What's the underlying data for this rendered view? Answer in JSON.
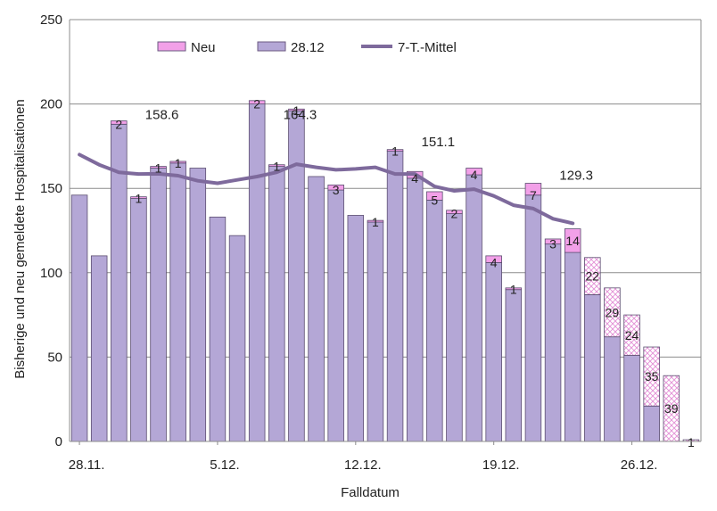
{
  "chart_data": {
    "type": "bar",
    "ylabel": "Bisherige und neu gemeldete Hospitalisationen",
    "xlabel": "Falldatum",
    "ylim": [
      0,
      250
    ],
    "yticks": [
      0,
      50,
      100,
      150,
      200,
      250
    ],
    "xtick_labels": [
      {
        "label": "28.11.",
        "index": 0
      },
      {
        "label": "5.12.",
        "index": 7
      },
      {
        "label": "12.12.",
        "index": 14
      },
      {
        "label": "19.12.",
        "index": 21
      },
      {
        "label": "26.12.",
        "index": 28
      }
    ],
    "legend": {
      "position": "top",
      "entries": [
        {
          "name": "Neu",
          "kind": "bar-new"
        },
        {
          "name": "28.12",
          "kind": "bar-old"
        },
        {
          "name": "7-T.-Mittel",
          "kind": "line"
        }
      ]
    },
    "series": [
      {
        "name": "28.12",
        "values": [
          146,
          110,
          188,
          144,
          162,
          165,
          162,
          133,
          122,
          200,
          163,
          196,
          157,
          149,
          134,
          130,
          172,
          156,
          143,
          135,
          158,
          106,
          90,
          146,
          117,
          112,
          87,
          62,
          51,
          21,
          0,
          0
        ]
      },
      {
        "name": "Neu",
        "values": [
          0,
          0,
          2,
          1,
          1,
          1,
          0,
          0,
          0,
          2,
          1,
          1,
          0,
          3,
          0,
          1,
          1,
          4,
          5,
          2,
          4,
          4,
          1,
          7,
          3,
          14,
          22,
          29,
          24,
          35,
          39,
          1
        ]
      },
      {
        "name": "7-T.-Mittel",
        "values": [
          170,
          164,
          159.5,
          158.5,
          158.6,
          157.5,
          154.5,
          153,
          155,
          157,
          159.5,
          164.3,
          162.5,
          161,
          161.5,
          162.5,
          158.5,
          158.5,
          151.1,
          148.5,
          149.5,
          145.5,
          140,
          138,
          132,
          129.3
        ]
      }
    ],
    "new_is_hatched_from_index": 26,
    "annotations": [
      {
        "text": "158.6",
        "index": 4,
        "y": 191
      },
      {
        "text": "164.3",
        "index": 11,
        "y": 191
      },
      {
        "text": "151.1",
        "index": 18,
        "y": 175
      },
      {
        "text": "129.3",
        "index": 25,
        "y": 155
      }
    ],
    "colors": {
      "old": "#b4a7d6",
      "new": "#f2a0e8",
      "hatch": "#e38fd6",
      "line": "#7e6a9c",
      "grid": "#8c8c8c"
    }
  }
}
